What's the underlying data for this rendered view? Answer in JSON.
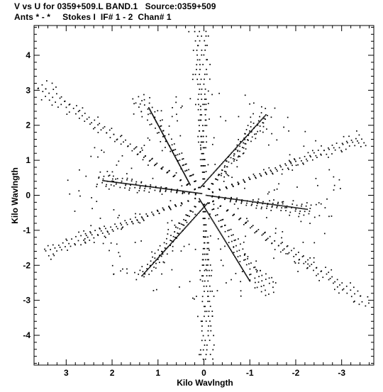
{
  "header": {
    "line1": "V vs U for 0359+509.L BAND.1   Source:0359+509",
    "line2": "Ants * - *     Stokes I  IF# 1 - 2  Chan# 1"
  },
  "chart_data": {
    "type": "scatter",
    "title": "V vs U for 0359+509.L BAND.1   Source:0359+509",
    "subtitle": "Ants * - *     Stokes I  IF# 1 - 2  Chan# 1",
    "xlabel": "Kilo Wavlngth",
    "ylabel": "Kilo Wavlngth",
    "xlim": [
      3.7,
      -3.7
    ],
    "ylim": [
      -4.85,
      4.85
    ],
    "x_ticks": [
      3,
      2,
      1,
      0,
      -1,
      -2,
      -3
    ],
    "x_tick_labels": [
      "3",
      "2",
      "1",
      "0",
      "-1",
      "-2",
      "-3"
    ],
    "y_ticks": [
      4,
      3,
      2,
      1,
      0,
      -1,
      -2,
      -3,
      -4
    ],
    "y_tick_labels": [
      "4",
      "3",
      "2",
      "1",
      "0",
      "-1",
      "-2",
      "-3",
      "-4"
    ],
    "grid": false,
    "arms": [
      {
        "end": [
          0.09,
          4.68
        ]
      },
      {
        "end": [
          3.58,
          3.09
        ]
      },
      {
        "end": [
          3.43,
          -1.62
        ]
      },
      {
        "end": [
          -0.09,
          -4.68
        ]
      },
      {
        "end": [
          -3.58,
          -3.09
        ]
      },
      {
        "end": [
          -3.43,
          1.62
        ]
      },
      {
        "end": [
          1.42,
          2.82
        ]
      },
      {
        "end": [
          2.3,
          0.45
        ]
      },
      {
        "end": [
          1.35,
          -2.3
        ]
      },
      {
        "end": [
          -1.42,
          -2.82
        ]
      },
      {
        "end": [
          -2.3,
          -0.45
        ]
      },
      {
        "end": [
          -1.35,
          2.3
        ]
      }
    ],
    "dense_lines": [
      {
        "from": [
          0.08,
          0.22
        ],
        "to": [
          -1.35,
          2.3
        ]
      },
      {
        "from": [
          -0.08,
          -0.22
        ],
        "to": [
          1.35,
          -2.3
        ]
      },
      {
        "from": [
          0.05,
          0.05
        ],
        "to": [
          2.2,
          0.42
        ]
      },
      {
        "from": [
          -0.05,
          0.0
        ],
        "to": [
          -2.25,
          -0.4
        ]
      },
      {
        "from": [
          0.1,
          -0.1
        ],
        "to": [
          -1.0,
          -2.45
        ]
      },
      {
        "from": [
          0.3,
          0.3
        ],
        "to": [
          1.2,
          2.5
        ]
      }
    ]
  }
}
